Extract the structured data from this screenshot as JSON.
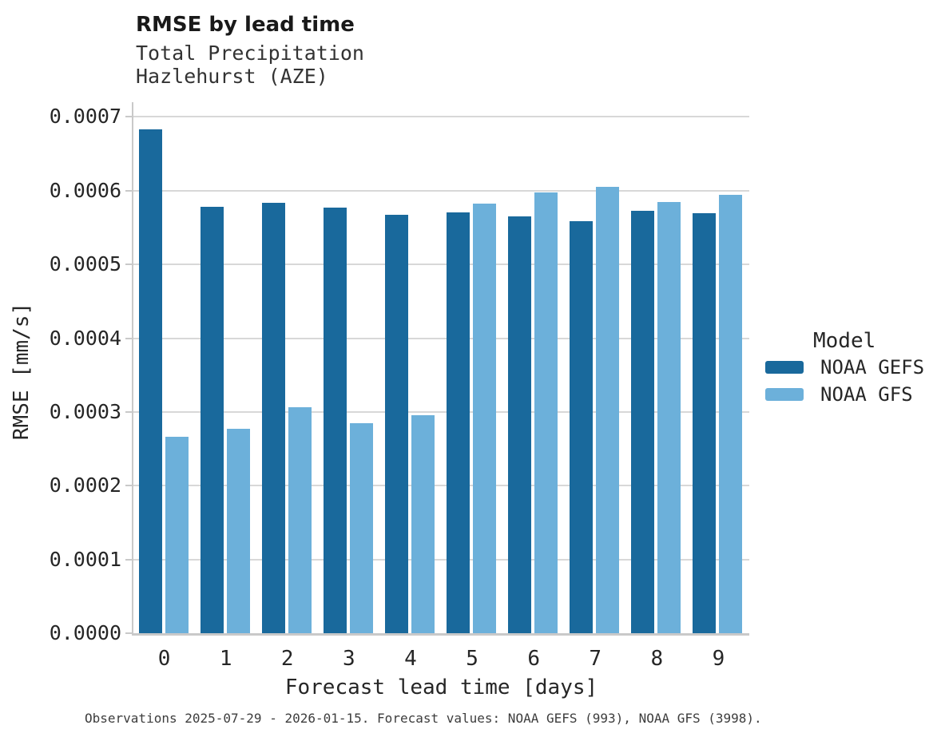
{
  "page": {
    "background": "#ffffff"
  },
  "chart_data": {
    "type": "bar",
    "title": "RMSE by lead time",
    "subtitle": [
      "Total Precipitation",
      "Hazlehurst (AZE)"
    ],
    "xlabel": "Forecast lead time [days]",
    "ylabel": "RMSE [mm/s]",
    "categories": [
      "0",
      "1",
      "2",
      "3",
      "4",
      "5",
      "6",
      "7",
      "8",
      "9"
    ],
    "series": [
      {
        "name": "NOAA GEFS",
        "color": "#19699c",
        "values": [
          0.000683,
          0.000578,
          0.000584,
          0.000577,
          0.000567,
          0.000571,
          0.000565,
          0.000559,
          0.000573,
          0.00057
        ]
      },
      {
        "name": "NOAA GFS",
        "color": "#6cb0da",
        "values": [
          0.000266,
          0.000277,
          0.000307,
          0.000285,
          0.000296,
          0.000583,
          0.000598,
          0.000605,
          0.000585,
          0.000594
        ]
      }
    ],
    "ylim": [
      0,
      0.00072
    ],
    "yticks": [
      "0.0000",
      "0.0001",
      "0.0002",
      "0.0003",
      "0.0004",
      "0.0005",
      "0.0006",
      "0.0007"
    ],
    "grid": "horizontal",
    "legend": {
      "title": "Model",
      "position": "right"
    },
    "caption": "Observations 2025-07-29 - 2026-01-15. Forecast values: NOAA GEFS (993), NOAA GFS (3998)."
  },
  "colors": {
    "grid": "#d8d8d8",
    "axis": "#c9c9c9"
  }
}
